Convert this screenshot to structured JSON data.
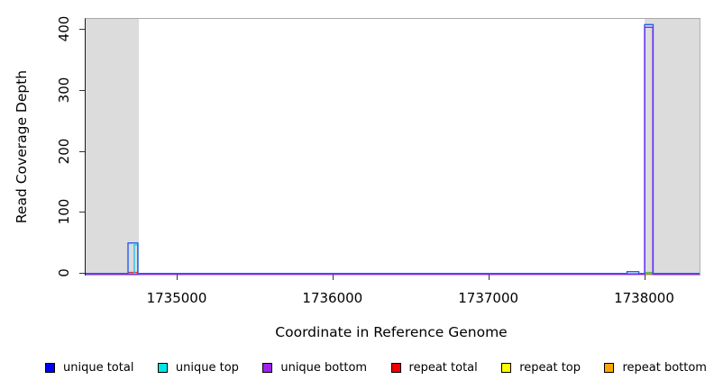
{
  "chart_data": {
    "type": "line",
    "title": "",
    "xlabel": "Coordinate in Reference Genome",
    "ylabel": "Read Coverage Depth",
    "xlim": [
      1734410,
      1738350
    ],
    "ylim": [
      0,
      417
    ],
    "x_ticks": [
      1735000,
      1736000,
      1737000,
      1738000
    ],
    "y_ticks": [
      0,
      100,
      200,
      300,
      400
    ],
    "x_tick_labels": [
      "1735000",
      "1736000",
      "1737000",
      "1738000"
    ],
    "y_tick_labels": [
      "0",
      "100",
      "200",
      "300",
      "400"
    ],
    "grid": false,
    "legend_position": "bottom",
    "shaded_regions": {
      "color": "#DCDCDC",
      "ranges": [
        [
          1734410,
          1734750
        ],
        [
          1737995,
          1738350
        ]
      ]
    },
    "series": [
      {
        "name": "repeat bottom",
        "color": "#FFA500",
        "runs": [
          [
            1734410,
            1738350,
            0
          ]
        ]
      },
      {
        "name": "repeat top",
        "color": "#FFFF00",
        "runs": [
          [
            1734410,
            1737999,
            0
          ],
          [
            1737999,
            1738049,
            2,
            "#5BC243"
          ],
          [
            1738049,
            1738350,
            0
          ]
        ]
      },
      {
        "name": "repeat total",
        "color": "#EE2A2A",
        "runs": [
          [
            1734410,
            1734688,
            0
          ],
          [
            1734688,
            1734742,
            2
          ],
          [
            1734742,
            1738350,
            0
          ]
        ]
      },
      {
        "name": "unique top",
        "color": "#1FC6EC",
        "runs": [
          [
            1734410,
            1734722,
            0
          ],
          [
            1734722,
            1734745,
            47
          ],
          [
            1734745,
            1738350,
            0
          ]
        ]
      },
      {
        "name": "unique total",
        "color": "#2160F2",
        "runs": [
          [
            1734410,
            1734682,
            0
          ],
          [
            1734682,
            1734745,
            50
          ],
          [
            1734745,
            1737884,
            0
          ],
          [
            1737884,
            1737960,
            3
          ],
          [
            1737960,
            1737997,
            0
          ],
          [
            1737997,
            1738052,
            408
          ],
          [
            1738052,
            1738350,
            0
          ]
        ]
      },
      {
        "name": "unique bottom",
        "color": "#7433EC",
        "runs": [
          [
            1734410,
            1737998,
            0
          ],
          [
            1737998,
            1738050,
            405
          ],
          [
            1738050,
            1738350,
            0
          ]
        ]
      }
    ]
  },
  "axes": {
    "x_title": "Coordinate in Reference Genome",
    "y_title": "Read Coverage Depth"
  },
  "legend": {
    "items": [
      {
        "label": "unique total",
        "color": "#0000F0"
      },
      {
        "label": "unique top",
        "color": "#00E6E6"
      },
      {
        "label": "unique bottom",
        "color": "#A020F0"
      },
      {
        "label": "repeat total",
        "color": "#EE0000"
      },
      {
        "label": "repeat top",
        "color": "#FFFF00"
      },
      {
        "label": "repeat bottom",
        "color": "#FFA500"
      }
    ]
  }
}
